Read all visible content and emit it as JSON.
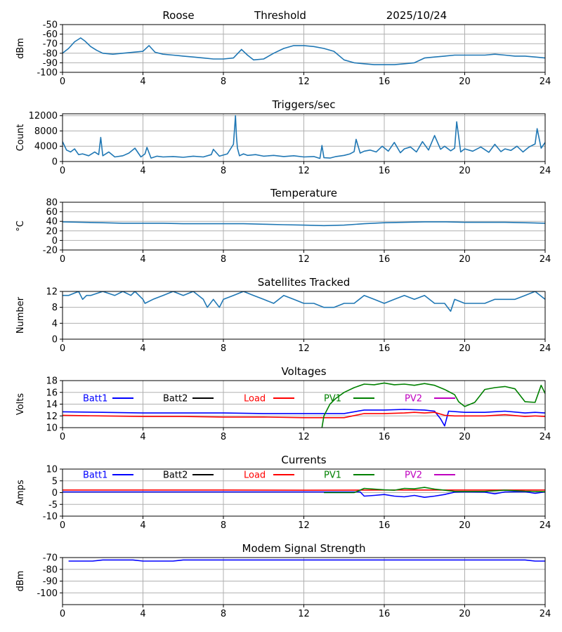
{
  "header": {
    "station": "Roose",
    "mode": "Threshold",
    "date": "2025/10/24"
  },
  "colors": {
    "series": "#1f77b4",
    "batt1": "#0000ff",
    "batt2": "#000000",
    "load": "#ff0000",
    "pv1": "#008000",
    "pv2": "#bf00bf",
    "grid": "#b0b0b0"
  },
  "chart_data": [
    {
      "id": "signal",
      "type": "line",
      "title": "",
      "ylabel": "dBm",
      "xlabel": "",
      "xlim": [
        0,
        24
      ],
      "ylim": [
        -100,
        -50
      ],
      "xticks": [
        "0",
        "4",
        "8",
        "12",
        "16",
        "20",
        "24"
      ],
      "yticks": [
        "-50",
        "-60",
        "-70",
        "-80",
        "-90",
        "-100"
      ],
      "series": [
        {
          "name": "Signal",
          "color": "#1f77b4",
          "x": [
            0,
            0.3,
            0.6,
            0.9,
            1.1,
            1.4,
            1.7,
            2.0,
            2.5,
            3.0,
            3.5,
            4.0,
            4.3,
            4.6,
            5.0,
            5.5,
            6.0,
            6.5,
            7.0,
            7.5,
            8.0,
            8.5,
            8.9,
            9.2,
            9.5,
            10.0,
            10.5,
            11.0,
            11.5,
            12.0,
            12.5,
            13.0,
            13.5,
            14.0,
            14.5,
            15.0,
            15.5,
            16.0,
            16.5,
            17.0,
            17.5,
            18.0,
            18.5,
            19.0,
            19.5,
            20.0,
            20.5,
            21.0,
            21.5,
            22.0,
            22.5,
            23.0,
            23.5,
            24.0
          ],
          "y": [
            -80,
            -75,
            -68,
            -64,
            -67,
            -73,
            -77,
            -80,
            -81,
            -80,
            -79,
            -78,
            -72,
            -79,
            -81,
            -82,
            -83,
            -84,
            -85,
            -86,
            -86,
            -85,
            -76,
            -82,
            -87,
            -86,
            -80,
            -75,
            -72,
            -72,
            -73,
            -75,
            -78,
            -87,
            -90,
            -91,
            -92,
            -92,
            -92,
            -91,
            -90,
            -85,
            -84,
            -83,
            -82,
            -82,
            -82,
            -82,
            -81,
            -82,
            -83,
            -83,
            -84,
            -85
          ]
        }
      ]
    },
    {
      "id": "triggers",
      "type": "line",
      "title": "Triggers/sec",
      "ylabel": "Count",
      "xlabel": "",
      "xlim": [
        0,
        24
      ],
      "ylim": [
        0,
        12500
      ],
      "xticks": [
        "0",
        "4",
        "8",
        "12",
        "16",
        "20",
        "24"
      ],
      "yticks": [
        "0",
        "4000",
        "8000",
        "12000"
      ],
      "series": [
        {
          "name": "Triggers",
          "color": "#1f77b4",
          "x": [
            0,
            0.2,
            0.4,
            0.6,
            0.8,
            1.0,
            1.3,
            1.6,
            1.8,
            1.9,
            2.0,
            2.3,
            2.6,
            3.0,
            3.3,
            3.6,
            3.9,
            4.1,
            4.2,
            4.4,
            4.7,
            5.0,
            5.5,
            6.0,
            6.5,
            7.0,
            7.4,
            7.5,
            7.8,
            8.2,
            8.5,
            8.6,
            8.65,
            8.7,
            8.8,
            9.0,
            9.2,
            9.6,
            10.0,
            10.5,
            11.0,
            11.5,
            12.0,
            12.5,
            12.8,
            12.9,
            13.0,
            13.3,
            13.6,
            14.0,
            14.3,
            14.5,
            14.6,
            14.8,
            15.0,
            15.3,
            15.6,
            15.9,
            16.2,
            16.5,
            16.8,
            17.0,
            17.3,
            17.6,
            17.9,
            18.2,
            18.5,
            18.8,
            19.0,
            19.3,
            19.5,
            19.6,
            19.8,
            20.0,
            20.4,
            20.8,
            21.2,
            21.5,
            21.8,
            22.0,
            22.3,
            22.6,
            22.9,
            23.2,
            23.5,
            23.6,
            23.8,
            24.0
          ],
          "y": [
            5200,
            3000,
            2500,
            3300,
            1800,
            2000,
            1500,
            2500,
            1800,
            6300,
            1500,
            2500,
            1200,
            1500,
            2200,
            3500,
            1200,
            2000,
            3700,
            900,
            1400,
            1200,
            1300,
            1100,
            1400,
            1200,
            1800,
            3200,
            1400,
            2000,
            4500,
            12000,
            6500,
            3500,
            1500,
            2000,
            1600,
            1800,
            1400,
            1600,
            1300,
            1500,
            1200,
            1300,
            800,
            4200,
            1000,
            900,
            1300,
            1600,
            2000,
            2600,
            5800,
            2200,
            2700,
            3000,
            2500,
            4000,
            2700,
            5000,
            2300,
            3300,
            3800,
            2500,
            5200,
            3000,
            6800,
            3200,
            4000,
            2800,
            3500,
            10400,
            2500,
            3300,
            2700,
            3800,
            2400,
            4500,
            2600,
            3300,
            2900,
            4000,
            2500,
            3800,
            4600,
            8600,
            3500,
            5000
          ]
        }
      ]
    },
    {
      "id": "temperature",
      "type": "line",
      "title": "Temperature",
      "ylabel": "°C",
      "xlabel": "",
      "xlim": [
        0,
        24
      ],
      "ylim": [
        -20,
        80
      ],
      "xticks": [
        "0",
        "4",
        "8",
        "12",
        "16",
        "20",
        "24"
      ],
      "yticks": [
        "80",
        "60",
        "40",
        "20",
        "0",
        "-20"
      ],
      "series": [
        {
          "name": "Temperature",
          "color": "#1f77b4",
          "x": [
            0,
            1,
            2,
            3,
            4,
            5,
            6,
            7,
            8,
            9,
            10,
            11,
            12,
            13,
            14,
            15,
            16,
            17,
            18,
            19,
            20,
            21,
            22,
            23,
            24
          ],
          "y": [
            39,
            38,
            37,
            36,
            36,
            36,
            35,
            35,
            35,
            35,
            34,
            33,
            32,
            31,
            32,
            35,
            37,
            38,
            39,
            39,
            38,
            38,
            38,
            37,
            36
          ]
        }
      ]
    },
    {
      "id": "satellites",
      "type": "line",
      "title": "Satellites Tracked",
      "ylabel": "Number",
      "xlabel": "",
      "xlim": [
        0,
        24
      ],
      "ylim": [
        0,
        12
      ],
      "xticks": [
        "0",
        "4",
        "8",
        "12",
        "16",
        "20",
        "24"
      ],
      "yticks": [
        "12",
        "8",
        "4",
        "0"
      ],
      "series": [
        {
          "name": "Satellites",
          "color": "#1f77b4",
          "x": [
            0,
            0.3,
            0.8,
            1.0,
            1.2,
            1.4,
            2.0,
            2.6,
            3.0,
            3.4,
            3.6,
            4.0,
            4.1,
            4.5,
            5.0,
            5.5,
            6.0,
            6.5,
            7.0,
            7.2,
            7.5,
            7.8,
            8.0,
            8.5,
            9.0,
            9.5,
            10.0,
            10.5,
            11.0,
            11.5,
            12.0,
            12.5,
            13.0,
            13.5,
            14.0,
            14.5,
            15.0,
            15.5,
            16.0,
            16.5,
            17.0,
            17.5,
            18.0,
            18.5,
            19.0,
            19.3,
            19.5,
            20.0,
            20.5,
            21.0,
            21.5,
            22.0,
            22.5,
            23.0,
            23.5,
            24.0
          ],
          "y": [
            11,
            11,
            12,
            10,
            11,
            11,
            12,
            11,
            12,
            11,
            12,
            10,
            9,
            10,
            11,
            12,
            11,
            12,
            10,
            8,
            10,
            8,
            10,
            11,
            12,
            11,
            10,
            9,
            11,
            10,
            9,
            9,
            8,
            8,
            9,
            9,
            11,
            10,
            9,
            10,
            11,
            10,
            11,
            9,
            9,
            7,
            10,
            9,
            9,
            9,
            10,
            10,
            10,
            11,
            12,
            10
          ]
        }
      ]
    },
    {
      "id": "voltages",
      "type": "line",
      "title": "Voltages",
      "ylabel": "Volts",
      "xlabel": "",
      "xlim": [
        0,
        24
      ],
      "ylim": [
        10,
        18
      ],
      "xticks": [
        "0",
        "4",
        "8",
        "12",
        "16",
        "20",
        "24"
      ],
      "yticks": [
        "18",
        "16",
        "14",
        "12",
        "10"
      ],
      "series": [
        {
          "name": "Batt1",
          "color": "#0000ff",
          "x": [
            0,
            2,
            4,
            6,
            8,
            10,
            12,
            14,
            15,
            16,
            17,
            18,
            18.5,
            18.8,
            19.0,
            19.2,
            20,
            21,
            22,
            23,
            23.5,
            24
          ],
          "y": [
            12.7,
            12.6,
            12.5,
            12.5,
            12.5,
            12.4,
            12.4,
            12.4,
            13.0,
            13.0,
            13.1,
            13.0,
            12.8,
            11.5,
            10.3,
            12.8,
            12.6,
            12.6,
            12.8,
            12.5,
            12.6,
            12.5
          ]
        },
        {
          "name": "Batt2",
          "color": "#000000",
          "x": [],
          "y": []
        },
        {
          "name": "Load",
          "color": "#ff0000",
          "x": [
            0,
            2,
            4,
            6,
            8,
            10,
            12,
            14,
            15,
            16,
            17,
            17.5,
            18,
            18.5,
            19,
            19.5,
            20,
            21,
            22,
            23,
            23.5,
            24
          ],
          "y": [
            12.1,
            12.0,
            11.9,
            11.9,
            11.8,
            11.8,
            11.7,
            11.7,
            12.4,
            12.4,
            12.5,
            12.6,
            12.5,
            12.6,
            12.1,
            12.0,
            12.0,
            12.0,
            12.2,
            11.9,
            12.0,
            11.9
          ]
        },
        {
          "name": "PV1",
          "color": "#008000",
          "x": [
            12.9,
            13.0,
            13.3,
            13.6,
            14.0,
            14.5,
            15.0,
            15.5,
            16.0,
            16.5,
            17.0,
            17.5,
            18.0,
            18.5,
            19.0,
            19.5,
            19.7,
            20.0,
            20.5,
            21.0,
            21.5,
            22.0,
            22.5,
            23.0,
            23.5,
            23.8,
            24.0
          ],
          "y": [
            10,
            12,
            14,
            15,
            16,
            16.8,
            17.4,
            17.3,
            17.6,
            17.3,
            17.4,
            17.2,
            17.5,
            17.2,
            16.5,
            15.6,
            14.4,
            13.6,
            14.3,
            16.5,
            16.8,
            17.0,
            16.6,
            14.4,
            14.3,
            17.2,
            15.8
          ]
        },
        {
          "name": "PV2",
          "color": "#bf00bf",
          "x": [],
          "y": []
        }
      ]
    },
    {
      "id": "currents",
      "type": "line",
      "title": "Currents",
      "ylabel": "Amps",
      "xlabel": "",
      "xlim": [
        0,
        24
      ],
      "ylim": [
        -10,
        10
      ],
      "xticks": [
        "0",
        "4",
        "8",
        "12",
        "16",
        "20",
        "24"
      ],
      "yticks": [
        "10",
        "5",
        "0",
        "-5",
        "-10"
      ],
      "series": [
        {
          "name": "Batt1",
          "color": "#0000ff",
          "x": [
            0,
            4,
            8,
            12,
            14.8,
            15.0,
            15.5,
            16.0,
            16.5,
            17.0,
            17.5,
            18.0,
            18.5,
            19.0,
            19.5,
            20,
            21,
            21.5,
            22,
            23,
            23.5,
            24
          ],
          "y": [
            0.3,
            0.3,
            0.3,
            0.3,
            0.3,
            -1.5,
            -1.2,
            -0.8,
            -1.5,
            -1.8,
            -1.2,
            -2.0,
            -1.5,
            -0.8,
            0.2,
            0.3,
            0.2,
            -0.5,
            0.3,
            0.4,
            -0.3,
            0.3
          ]
        },
        {
          "name": "Batt2",
          "color": "#000000",
          "x": [],
          "y": []
        },
        {
          "name": "Load",
          "color": "#ff0000",
          "x": [
            0,
            4,
            8,
            12,
            16,
            20,
            24
          ],
          "y": [
            1.1,
            1.1,
            1.1,
            1.0,
            1.1,
            1.1,
            1.1
          ]
        },
        {
          "name": "PV1",
          "color": "#008000",
          "x": [
            13,
            14.5,
            15.0,
            15.5,
            16.0,
            16.5,
            17.0,
            17.5,
            18.0,
            18.5,
            19.0,
            19.5,
            20,
            21,
            22,
            23,
            24
          ],
          "y": [
            0,
            0,
            1.8,
            1.5,
            1.2,
            1.0,
            1.8,
            1.6,
            2.2,
            1.5,
            1.0,
            0.5,
            0.5,
            0.5,
            1.0,
            0.6,
            0.4
          ]
        },
        {
          "name": "PV2",
          "color": "#bf00bf",
          "x": [],
          "y": []
        }
      ]
    },
    {
      "id": "modem",
      "type": "line",
      "title": "Modem Signal Strength",
      "ylabel": "dBm",
      "xlabel": "",
      "xlim": [
        0,
        24
      ],
      "ylim": [
        -110,
        -70
      ],
      "xticks": [
        "0",
        "4",
        "8",
        "12",
        "16",
        "20",
        "24"
      ],
      "yticks": [
        "-70",
        "-80",
        "-90",
        "-100"
      ],
      "series": [
        {
          "name": "Modem",
          "color": "#0000ff",
          "x": [
            0.3,
            1.0,
            1.5,
            2.0,
            2.5,
            3.0,
            3.5,
            4.0,
            4.5,
            5.0,
            5.5,
            6.0,
            7.0,
            8.0,
            10.0,
            12.0,
            14.0,
            16.0,
            18.0,
            20.0,
            22.0,
            23.0,
            23.5,
            24.0
          ],
          "y": [
            -73,
            -73,
            -73,
            -72,
            -72,
            -72,
            -72,
            -73,
            -73,
            -73,
            -73,
            -72,
            -72,
            -72,
            -72,
            -72,
            -72,
            -72,
            -72,
            -72,
            -72,
            -72,
            -73,
            -73
          ]
        }
      ]
    }
  ]
}
